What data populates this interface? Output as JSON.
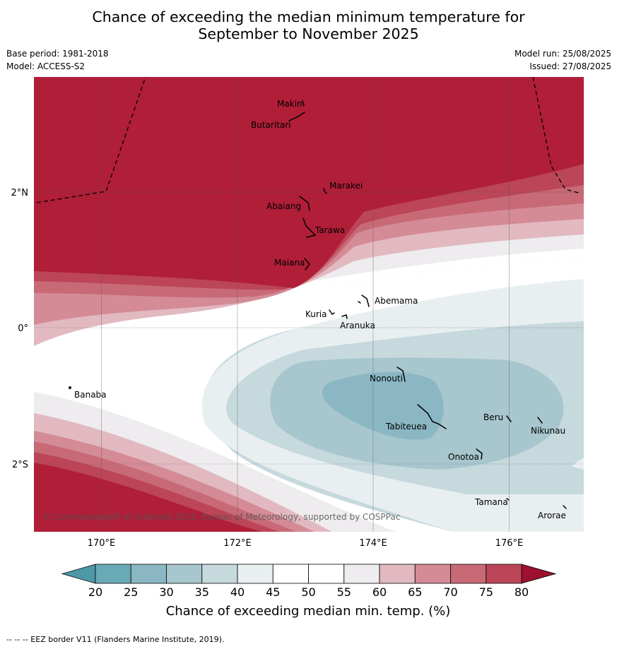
{
  "title_line1": "Chance of exceeding the median minimum temperature for",
  "title_line2": "September to November 2025",
  "base_period": "Base period: 1981-2018",
  "model": "Model: ACCESS-S2",
  "model_run": "Model run: 25/08/2025",
  "issued": "Issued: 27/08/2025",
  "copyright": "© Commonwealth of Australia 2025, Bureau of Meteorology, supported by COSPPac",
  "footer": "--  --  -- EEZ border V11 (Flanders Marine Institute, 2019).",
  "colorbar": {
    "label": "Chance of exceeding median min. temp. (%)",
    "ticks": [
      "20",
      "25",
      "30",
      "35",
      "40",
      "45",
      "50",
      "55",
      "60",
      "65",
      "70",
      "75",
      "80"
    ],
    "colors": [
      "#6aaab6",
      "#8ab7c3",
      "#a7c6cd",
      "#c6d9dd",
      "#e9eff1",
      "#ffffff",
      "#ffffff",
      "#eeecee",
      "#e2b9c0",
      "#d48b96",
      "#c86a76",
      "#bc4558",
      "#b01e38"
    ]
  },
  "map": {
    "lon_ticks": [
      "170°E",
      "172°E",
      "174°E",
      "176°E"
    ],
    "lat_ticks": [
      "2°N",
      "0°",
      "2°S"
    ],
    "places": [
      "Makin",
      "Butaritari",
      "Marakei",
      "Abaiang",
      "Tarawa",
      "Maiana",
      "Abemama",
      "Kuria",
      "Aranuka",
      "Banaba",
      "Nonouti",
      "Tabiteuea",
      "Beru",
      "Nikunau",
      "Onotoa",
      "Tamana",
      "Arorae"
    ]
  }
}
